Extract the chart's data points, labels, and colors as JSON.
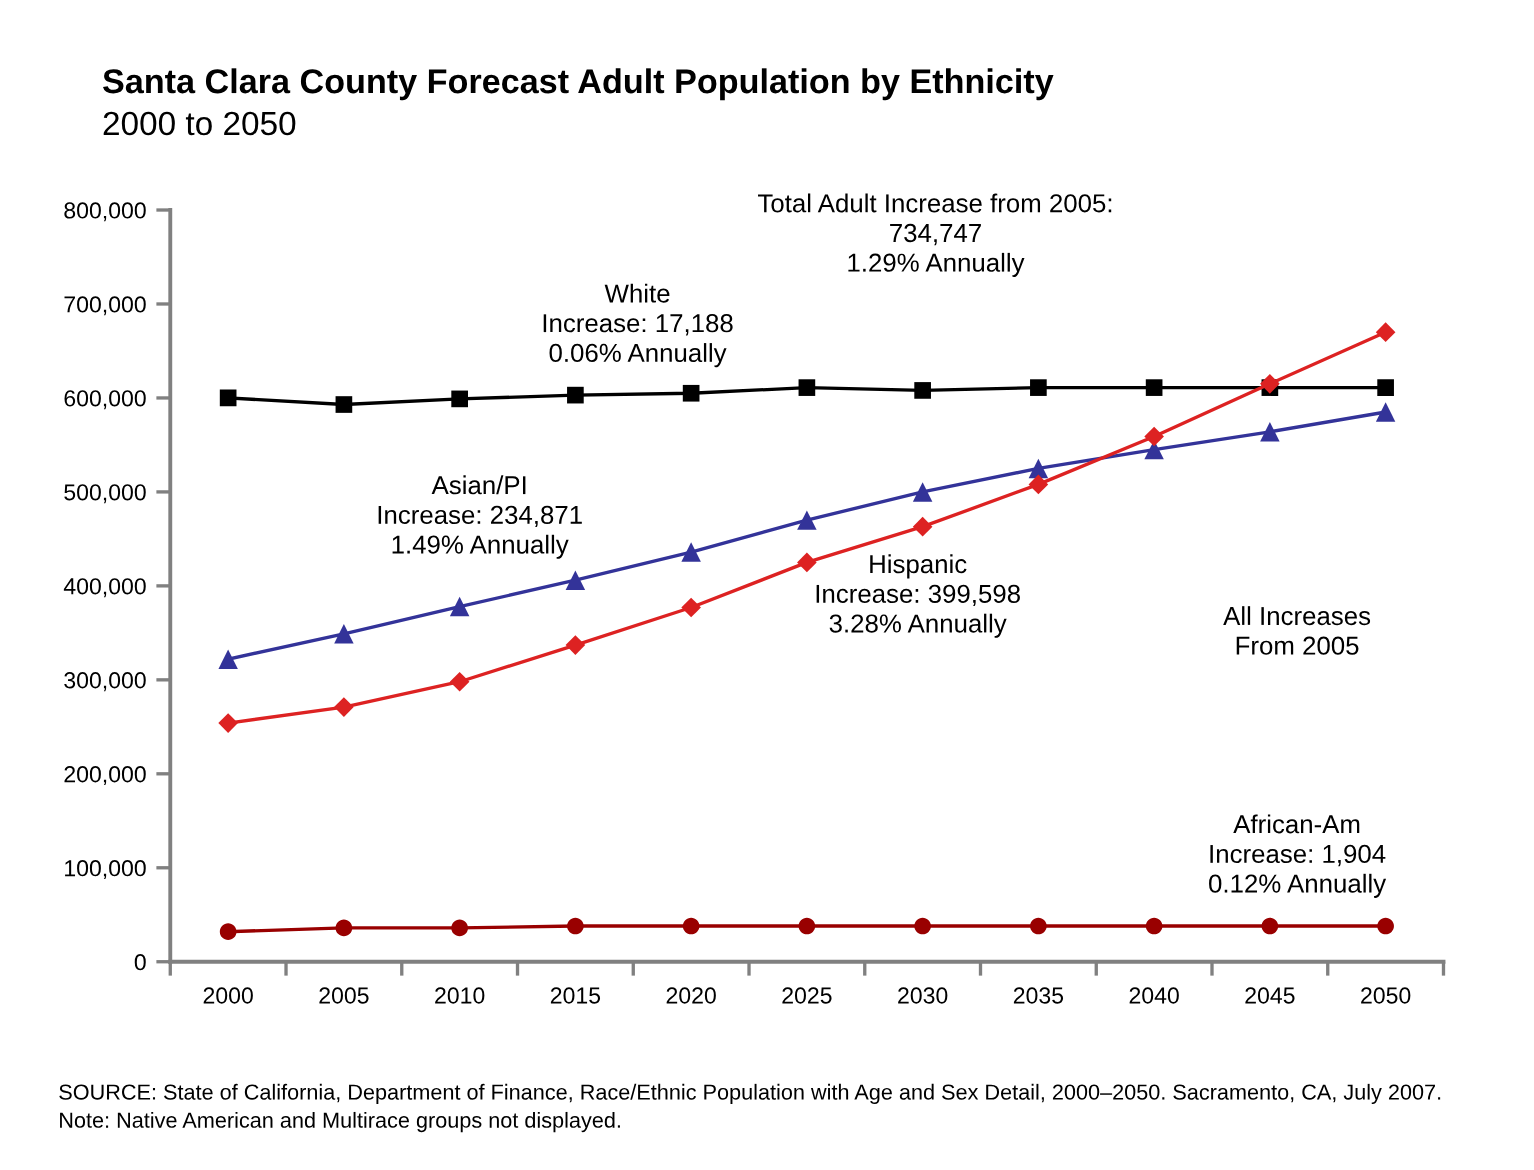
{
  "chart_data": {
    "type": "line",
    "title": "Santa Clara County Forecast Adult Population by Ethnicity",
    "subtitle": "2000 to 2050",
    "categories": [
      "2000",
      "2005",
      "2010",
      "2015",
      "2020",
      "2025",
      "2030",
      "2035",
      "2040",
      "2045",
      "2050"
    ],
    "series": [
      {
        "color": "#000000",
        "marker": "square",
        "values": [
          600000,
          593000,
          599000,
          603000,
          605000,
          611000,
          608000,
          611000,
          611000,
          611000,
          611000
        ]
      },
      {
        "color": "#333399",
        "marker": "triangle",
        "values": [
          322000,
          349000,
          378000,
          406000,
          436000,
          470000,
          500000,
          525000,
          545000,
          564000,
          585000
        ]
      },
      {
        "color": "#dd2222",
        "marker": "diamond",
        "values": [
          254000,
          271000,
          298000,
          337000,
          377000,
          425000,
          463000,
          508000,
          559000,
          615000,
          670000
        ]
      },
      {
        "color": "#990000",
        "marker": "circle",
        "values": [
          32000,
          36000,
          36000,
          38000,
          38000,
          38000,
          38000,
          38000,
          38000,
          38000,
          38000
        ]
      }
    ],
    "ylim": [
      0,
      800000
    ],
    "yticks": [
      0,
      {
        "value": 100000,
        "label": "100,000"
      },
      {
        "value": 200000,
        "label": "200,000"
      },
      {
        "value": 300000,
        "label": "300,000"
      },
      {
        "value": 400000,
        "label": "400,000"
      },
      {
        "value": 500000,
        "label": "500,000"
      },
      {
        "value": 600000,
        "label": "600,000"
      },
      {
        "value": 700000,
        "label": "700,000"
      },
      {
        "value": 800000,
        "label": "800,000"
      }
    ],
    "annotations": [
      "Total Adult Increase from 2005:\n734,747\n1.29% Annually",
      "White\nIncrease: 17,188\n0.06% Annually",
      "Asian/PI\nIncrease: 234,871\n1.49% Annually",
      "Hispanic\nIncrease: 399,598\n3.28% Annually",
      "All Increases\nFrom 2005",
      "African-Am\nIncrease: 1,904\n0.12% Annually",
      "SOURCE: State of California, Department of Finance, Race/Ethnic Population with Age and Sex Detail, 2000–2050. Sacramento, CA, July 2007.",
      "Note: Native American and Multirace groups not displayed."
    ]
  }
}
